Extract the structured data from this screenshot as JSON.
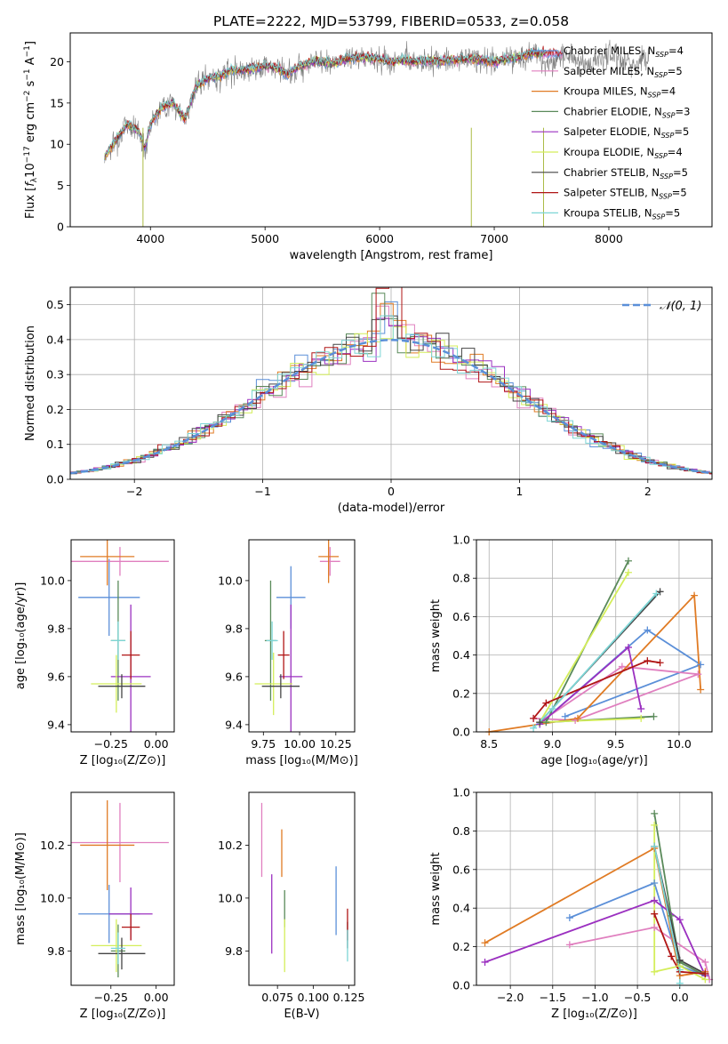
{
  "suptitle": "PLATE=2222, MJD=53799, FIBERID=0533, z=0.058",
  "colors": {
    "Chabrier MILES": "#5b8fd8",
    "Salpeter MILES": "#e07fbf",
    "Kroupa MILES": "#e07b24",
    "Chabrier ELODIE": "#5a8a5a",
    "Salpeter ELODIE": "#9b30c0",
    "Kroupa ELODIE": "#d4ee5a",
    "Chabrier STELIB": "#444444",
    "Salpeter STELIB": "#b01515",
    "Kroupa STELIB": "#7dd6d6",
    "data": "#808080",
    "normal": "#5b8fd8",
    "grid": "#b0b0b0"
  },
  "chart_data": [
    {
      "id": "spectrum",
      "type": "line",
      "title": "",
      "xlabel": "wavelength [Angstrom, rest frame]",
      "ylabel": "Flux [fλ10⁻¹⁷ erg cm⁻² s⁻¹ A⁻¹]",
      "xlim": [
        3300,
        8900
      ],
      "ylim": [
        0,
        23.5
      ],
      "xticks": [
        4000,
        5000,
        6000,
        7000,
        8000
      ],
      "yticks": [
        0,
        5,
        10,
        15,
        20
      ],
      "grid": false,
      "legend_position": "top-right",
      "legend": [
        {
          "name": "Chabrier MILES",
          "nssp": "4"
        },
        {
          "name": "Salpeter MILES",
          "nssp": "5"
        },
        {
          "name": "Kroupa MILES",
          "nssp": "4"
        },
        {
          "name": "Chabrier ELODIE",
          "nssp": "3"
        },
        {
          "name": "Salpeter ELODIE",
          "nssp": "5"
        },
        {
          "name": "Kroupa ELODIE",
          "nssp": "4"
        },
        {
          "name": "Chabrier STELIB",
          "nssp": "5"
        },
        {
          "name": "Salpeter STELIB",
          "nssp": "5"
        },
        {
          "name": "Kroupa STELIB",
          "nssp": "5"
        }
      ],
      "x": [
        3600,
        3700,
        3800,
        3900,
        3950,
        4000,
        4100,
        4200,
        4300,
        4400,
        4500,
        4600,
        4700,
        4800,
        4900,
        5000,
        5100,
        5200,
        5300,
        5400,
        5500,
        5600,
        5700,
        5800,
        5900,
        6000,
        6100,
        6200,
        6300,
        6400,
        6500,
        6600,
        6700,
        6800,
        6900,
        7000,
        7100,
        7200,
        7300,
        7400
      ],
      "y": [
        8.5,
        10.5,
        12.5,
        11.5,
        9.5,
        12.5,
        14.5,
        15.0,
        13.0,
        17.0,
        18.0,
        18.2,
        19.0,
        19.0,
        19.2,
        19.5,
        19.2,
        18.5,
        19.5,
        20.0,
        20.0,
        19.8,
        20.3,
        20.5,
        20.5,
        20.3,
        20.0,
        20.2,
        20.0,
        20.2,
        20.0,
        20.2,
        20.3,
        20.3,
        20.2,
        20.0,
        20.3,
        20.5,
        21.0,
        21.0
      ]
    },
    {
      "id": "residuals",
      "type": "line",
      "title": "",
      "xlabel": "(data-model)/error",
      "ylabel": "Normed distribution",
      "xlim": [
        -2.5,
        2.5
      ],
      "ylim": [
        0,
        0.55
      ],
      "xticks": [
        -2,
        -1,
        0,
        1,
        2
      ],
      "yticks": [
        0.0,
        0.1,
        0.2,
        0.3,
        0.4,
        0.5
      ],
      "grid": true,
      "legend_position": "top-right",
      "legend_label": "𝒩(0, 1)",
      "series": [
        {
          "name": "𝒩(0, 1)",
          "type": "gaussian",
          "mean": 0,
          "sigma": 1
        }
      ],
      "histogram_peak": 0.52
    },
    {
      "id": "age_vs_Z",
      "type": "scatter",
      "title": "",
      "xlabel": "Z [log₁₀(Z/Z⊙)]",
      "ylabel": "age  [log₁₀(age/yr)]",
      "xlim": [
        -0.47,
        0.1
      ],
      "ylim": [
        9.37,
        10.17
      ],
      "xticks": [
        -0.25,
        0.0
      ],
      "xticklabels": [
        "−0.25",
        "0.00"
      ],
      "yticks": [
        9.4,
        9.6,
        9.8,
        10.0
      ],
      "grid": false,
      "points": [
        {
          "series": "Chabrier MILES",
          "x": -0.26,
          "y": 9.93,
          "xerr": 0.17,
          "yerr": 0.16
        },
        {
          "series": "Salpeter MILES",
          "x": -0.2,
          "y": 10.08,
          "xerr": 0.27,
          "yerr": 0.06
        },
        {
          "series": "Kroupa MILES",
          "x": -0.27,
          "y": 10.1,
          "xerr": 0.15,
          "yerr": 0.12
        },
        {
          "series": "Chabrier ELODIE",
          "x": -0.21,
          "y": 9.75,
          "xerr": 0.04,
          "yerr": 0.25
        },
        {
          "series": "Salpeter ELODIE",
          "x": -0.14,
          "y": 9.6,
          "xerr": 0.11,
          "yerr": 0.3
        },
        {
          "series": "Kroupa ELODIE",
          "x": -0.22,
          "y": 9.57,
          "xerr": 0.14,
          "yerr": 0.12
        },
        {
          "series": "Chabrier STELIB",
          "x": -0.19,
          "y": 9.56,
          "xerr": 0.13,
          "yerr": 0.05
        },
        {
          "series": "Salpeter STELIB",
          "x": -0.14,
          "y": 9.69,
          "xerr": 0.05,
          "yerr": 0.1
        },
        {
          "series": "Kroupa STELIB",
          "x": -0.21,
          "y": 9.75,
          "xerr": 0.04,
          "yerr": 0.08
        }
      ]
    },
    {
      "id": "age_vs_mass",
      "type": "scatter",
      "title": "",
      "xlabel": "mass [log₁₀(M/M⊙)]",
      "ylabel": "",
      "xlim": [
        9.65,
        10.38
      ],
      "ylim": [
        9.37,
        10.17
      ],
      "xticks": [
        9.75,
        10.0,
        10.25
      ],
      "yticks": [
        9.4,
        9.6,
        9.8,
        10.0
      ],
      "grid": false,
      "points": [
        {
          "series": "Chabrier MILES",
          "x": 9.94,
          "y": 9.93,
          "xerr": 0.1,
          "yerr": 0.13
        },
        {
          "series": "Salpeter MILES",
          "x": 10.21,
          "y": 10.08,
          "xerr": 0.07,
          "yerr": 0.06
        },
        {
          "series": "Kroupa MILES",
          "x": 10.2,
          "y": 10.1,
          "xerr": 0.07,
          "yerr": 0.11
        },
        {
          "series": "Chabrier ELODIE",
          "x": 9.8,
          "y": 9.75,
          "xerr": 0.04,
          "yerr": 0.25
        },
        {
          "series": "Salpeter ELODIE",
          "x": 9.94,
          "y": 9.6,
          "xerr": 0.08,
          "yerr": 0.3
        },
        {
          "series": "Kroupa ELODIE",
          "x": 9.82,
          "y": 9.57,
          "xerr": 0.13,
          "yerr": 0.13
        },
        {
          "series": "Chabrier STELIB",
          "x": 9.87,
          "y": 9.56,
          "xerr": 0.13,
          "yerr": 0.05
        },
        {
          "series": "Salpeter STELIB",
          "x": 9.89,
          "y": 9.69,
          "xerr": 0.04,
          "yerr": 0.1
        },
        {
          "series": "Kroupa STELIB",
          "x": 9.81,
          "y": 9.75,
          "xerr": 0.04,
          "yerr": 0.08
        }
      ]
    },
    {
      "id": "weight_vs_age",
      "type": "line",
      "title": "",
      "xlabel": "age  [log₁₀(age/yr)]",
      "ylabel": "mass weight",
      "xlim": [
        8.4,
        10.26
      ],
      "ylim": [
        0,
        1
      ],
      "xticks": [
        8.5,
        9.0,
        9.5,
        10.0
      ],
      "yticks": [
        0.0,
        0.2,
        0.4,
        0.6,
        0.8,
        1.0
      ],
      "grid": true,
      "series": [
        {
          "name": "Chabrier MILES",
          "x": [
            8.9,
            9.75,
            10.17,
            9.1
          ],
          "y": [
            0.04,
            0.53,
            0.35,
            0.08
          ]
        },
        {
          "name": "Salpeter MILES",
          "x": [
            8.85,
            9.18,
            10.15,
            9.55,
            8.9
          ],
          "y": [
            0.07,
            0.06,
            0.3,
            0.34,
            0.05
          ]
        },
        {
          "name": "Kroupa MILES",
          "x": [
            8.5,
            9.2,
            10.12,
            10.17
          ],
          "y": [
            0.0,
            0.07,
            0.71,
            0.22
          ]
        },
        {
          "name": "Chabrier ELODIE",
          "x": [
            9.6,
            8.95,
            9.8
          ],
          "y": [
            0.89,
            0.05,
            0.08
          ]
        },
        {
          "name": "Salpeter ELODIE",
          "x": [
            8.9,
            9.6,
            9.7
          ],
          "y": [
            0.04,
            0.44,
            0.12
          ]
        },
        {
          "name": "Kroupa ELODIE",
          "x": [
            9.6,
            8.9,
            9.7
          ],
          "y": [
            0.83,
            0.05,
            0.07
          ]
        },
        {
          "name": "Chabrier STELIB",
          "x": [
            8.9,
            9.85
          ],
          "y": [
            0.05,
            0.73
          ]
        },
        {
          "name": "Salpeter STELIB",
          "x": [
            8.85,
            8.95,
            9.75,
            9.85
          ],
          "y": [
            0.07,
            0.15,
            0.37,
            0.36
          ]
        },
        {
          "name": "Kroupa STELIB",
          "x": [
            8.85,
            9.0,
            9.82
          ],
          "y": [
            0.02,
            0.12,
            0.72
          ]
        }
      ]
    },
    {
      "id": "mass_vs_Z",
      "type": "scatter",
      "title": "",
      "xlabel": "Z [log₁₀(Z/Z⊙)]",
      "ylabel": "mass [log₁₀(M/M⊙)]",
      "xlim": [
        -0.47,
        0.1
      ],
      "ylim": [
        9.67,
        10.4
      ],
      "xticks": [
        -0.25,
        0.0
      ],
      "xticklabels": [
        "−0.25",
        "0.00"
      ],
      "yticks": [
        9.8,
        10.0,
        10.2
      ],
      "grid": false,
      "points": [
        {
          "series": "Chabrier MILES",
          "x": -0.26,
          "y": 9.94,
          "xerr": 0.17,
          "yerr": 0.11
        },
        {
          "series": "Salpeter MILES",
          "x": -0.2,
          "y": 10.21,
          "xerr": 0.27,
          "yerr": 0.15
        },
        {
          "series": "Kroupa MILES",
          "x": -0.27,
          "y": 10.2,
          "xerr": 0.15,
          "yerr": 0.17
        },
        {
          "series": "Chabrier ELODIE",
          "x": -0.21,
          "y": 9.8,
          "xerr": 0.04,
          "yerr": 0.1
        },
        {
          "series": "Salpeter ELODIE",
          "x": -0.14,
          "y": 9.94,
          "xerr": 0.12,
          "yerr": 0.1
        },
        {
          "series": "Kroupa ELODIE",
          "x": -0.22,
          "y": 9.82,
          "xerr": 0.14,
          "yerr": 0.1
        },
        {
          "series": "Chabrier STELIB",
          "x": -0.19,
          "y": 9.79,
          "xerr": 0.13,
          "yerr": 0.06
        },
        {
          "series": "Salpeter STELIB",
          "x": -0.14,
          "y": 9.89,
          "xerr": 0.05,
          "yerr": 0.05
        },
        {
          "series": "Kroupa STELIB",
          "x": -0.21,
          "y": 9.81,
          "xerr": 0.04,
          "yerr": 0.06
        }
      ]
    },
    {
      "id": "mass_vs_ebv",
      "type": "scatter",
      "title": "",
      "xlabel": "E(B-V)",
      "ylabel": "",
      "xlim": [
        0.055,
        0.129
      ],
      "ylim": [
        9.67,
        10.4
      ],
      "xticks": [
        0.075,
        0.1,
        0.125
      ],
      "yticks": [
        9.8,
        10.0,
        10.2
      ],
      "grid": false,
      "points": [
        {
          "series": "Chabrier MILES",
          "x": 0.116,
          "y": 9.99,
          "xerr": 0,
          "yerr": 0.13
        },
        {
          "series": "Salpeter MILES",
          "x": 0.064,
          "y": 10.22,
          "xerr": 0,
          "yerr": 0.14
        },
        {
          "series": "Kroupa MILES",
          "x": 0.078,
          "y": 10.17,
          "xerr": 0,
          "yerr": 0.09
        },
        {
          "series": "Chabrier ELODIE",
          "x": 0.08,
          "y": 9.96,
          "xerr": 0,
          "yerr": 0.07
        },
        {
          "series": "Salpeter ELODIE",
          "x": 0.071,
          "y": 9.94,
          "xerr": 0,
          "yerr": 0.15
        },
        {
          "series": "Kroupa ELODIE",
          "x": 0.08,
          "y": 9.82,
          "xerr": 0,
          "yerr": 0.1
        },
        {
          "series": "Chabrier STELIB",
          "x": 0.124,
          "y": 9.86,
          "xerr": 0,
          "yerr": 0.05
        },
        {
          "series": "Salpeter STELIB",
          "x": 0.124,
          "y": 9.9,
          "xerr": 0,
          "yerr": 0.06
        },
        {
          "series": "Kroupa STELIB",
          "x": 0.124,
          "y": 9.82,
          "xerr": 0,
          "yerr": 0.06
        }
      ]
    },
    {
      "id": "weight_vs_Z",
      "type": "line",
      "title": "",
      "xlabel": "Z [log₁₀(Z/Z⊙)]",
      "ylabel": "mass weight",
      "xlim": [
        -2.4,
        0.38
      ],
      "ylim": [
        0,
        1
      ],
      "xticks": [
        -2.0,
        -1.5,
        -1.0,
        -0.5,
        0.0
      ],
      "yticks": [
        0.0,
        0.2,
        0.4,
        0.6,
        0.8,
        1.0
      ],
      "grid": true,
      "series": [
        {
          "name": "Chabrier MILES",
          "x": [
            -1.3,
            -0.3,
            0.0,
            0.3
          ],
          "y": [
            0.35,
            0.53,
            0.1,
            0.05
          ]
        },
        {
          "name": "Salpeter MILES",
          "x": [
            -1.3,
            -0.3,
            0.3,
            0.35
          ],
          "y": [
            0.21,
            0.3,
            0.12,
            0.03
          ]
        },
        {
          "name": "Kroupa MILES",
          "x": [
            -2.3,
            -0.3,
            0.0,
            0.3
          ],
          "y": [
            0.22,
            0.71,
            0.05,
            0.07
          ]
        },
        {
          "name": "Chabrier ELODIE",
          "x": [
            -0.3,
            -0.1,
            0.0,
            0.3
          ],
          "y": [
            0.89,
            0.36,
            0.12,
            0.05
          ]
        },
        {
          "name": "Salpeter ELODIE",
          "x": [
            -2.3,
            -0.3,
            0.0,
            0.3
          ],
          "y": [
            0.12,
            0.44,
            0.34,
            0.05
          ]
        },
        {
          "name": "Kroupa ELODIE",
          "x": [
            -0.3,
            -0.3,
            0.0,
            0.3
          ],
          "y": [
            0.83,
            0.07,
            0.1,
            0.03
          ]
        },
        {
          "name": "Chabrier STELIB",
          "x": [
            -0.3,
            0.0,
            0.3
          ],
          "y": [
            0.72,
            0.13,
            0.06
          ]
        },
        {
          "name": "Salpeter STELIB",
          "x": [
            -0.3,
            -0.1,
            0.0,
            0.3
          ],
          "y": [
            0.37,
            0.15,
            0.07,
            0.06
          ]
        },
        {
          "name": "Kroupa STELIB",
          "x": [
            -0.3,
            0.0,
            0.0
          ],
          "y": [
            0.72,
            0.08,
            0.01
          ]
        }
      ]
    }
  ]
}
